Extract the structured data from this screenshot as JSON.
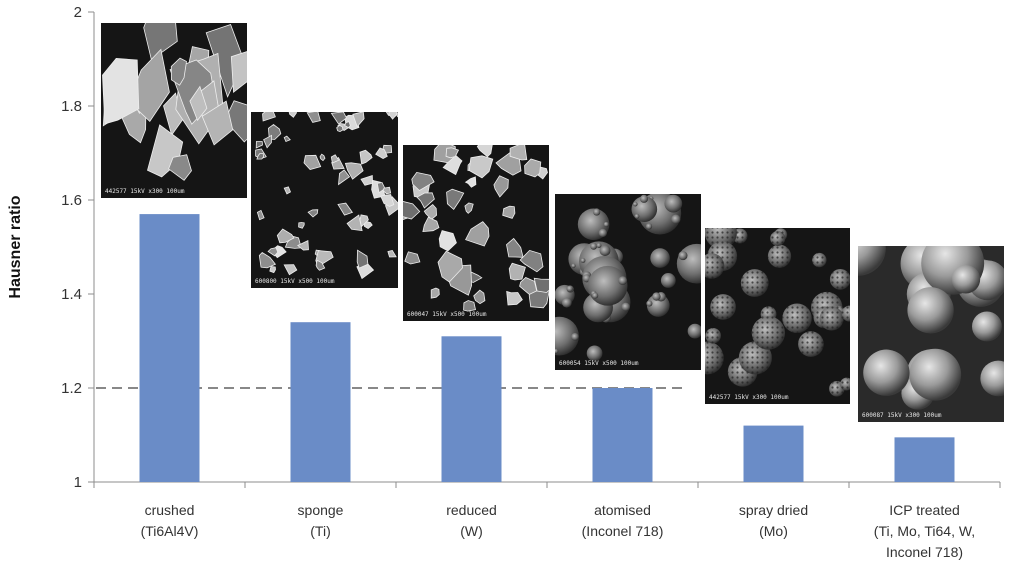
{
  "chart_data": {
    "type": "bar",
    "title": "",
    "xlabel": "",
    "ylabel": "Hausner ratio",
    "ylim": [
      1,
      2
    ],
    "yticks": [
      "1",
      "1.2",
      "1.4",
      "1.6",
      "1.8",
      "2"
    ],
    "categories": [
      [
        "crushed",
        "(Ti6Al4V)"
      ],
      [
        "sponge",
        "(Ti)"
      ],
      [
        "reduced",
        "(W)"
      ],
      [
        "atomised",
        "(Inconel 718)"
      ],
      [
        "spray dried",
        "(Mo)"
      ],
      [
        "ICP treated",
        "(Ti, Mo, Ti64, W,",
        "Inconel 718)"
      ]
    ],
    "values": [
      1.57,
      1.34,
      1.31,
      1.2,
      1.12,
      1.095
    ],
    "reference_line": 1.2,
    "bar_color": "#6a8cc7",
    "reference_line_color": "#888888",
    "grid": false,
    "legend": "none"
  },
  "sem_images": [
    {
      "caption": "442577 15kV x300 100um",
      "particle_style": "angular"
    },
    {
      "caption": "600800 15kV x500 100um",
      "particle_style": "sponge"
    },
    {
      "caption": "600047 15kV x500 100um",
      "particle_style": "faceted"
    },
    {
      "caption": "600054 15kV x500 100um",
      "particle_style": "satellite-spheres"
    },
    {
      "caption": "442577 15kV x300 100um",
      "particle_style": "porous-spheres"
    },
    {
      "caption": "600087 15kV x300 100um",
      "particle_style": "smooth-spheres"
    }
  ]
}
